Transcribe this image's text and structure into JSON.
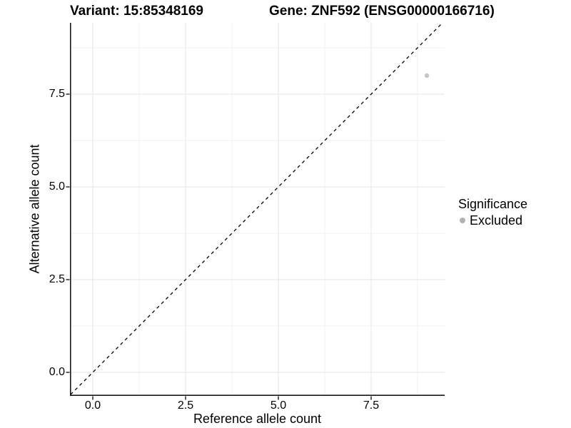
{
  "chart_data": {
    "type": "scatter",
    "title_variant": "Variant: 15:85348169",
    "title_gene": "Gene: ZNF592 (ENSG00000166716)",
    "xlabel": "Reference allele count",
    "ylabel": "Alternative allele count",
    "xlim": [
      -0.6,
      9.45
    ],
    "ylim": [
      -0.65,
      9.42
    ],
    "x_ticks": [
      0.0,
      2.5,
      5.0,
      7.5
    ],
    "x_tick_labels": [
      "0.0",
      "2.5",
      "5.0",
      "7.5"
    ],
    "y_ticks": [
      0.0,
      2.5,
      5.0,
      7.5
    ],
    "y_tick_labels": [
      "0.0",
      "2.5",
      "5.0",
      "7.5"
    ],
    "minor_ticks": [
      1.25,
      3.75,
      6.25,
      8.75
    ],
    "grid": true,
    "reference_line": {
      "kind": "identity",
      "style": "dashed",
      "color": "#000000"
    },
    "points": [
      {
        "x": 9,
        "y": 8,
        "series": "Excluded",
        "color": "#c5c5c5"
      }
    ],
    "legend": {
      "title": "Significance",
      "position": "right",
      "items": [
        {
          "label": "Excluded",
          "color": "#b3b3b3"
        }
      ]
    },
    "colors": {
      "axis_line": "#1a1a1a",
      "major_grid": "#e6e6e6",
      "minor_grid": "#f2f2f2"
    }
  }
}
